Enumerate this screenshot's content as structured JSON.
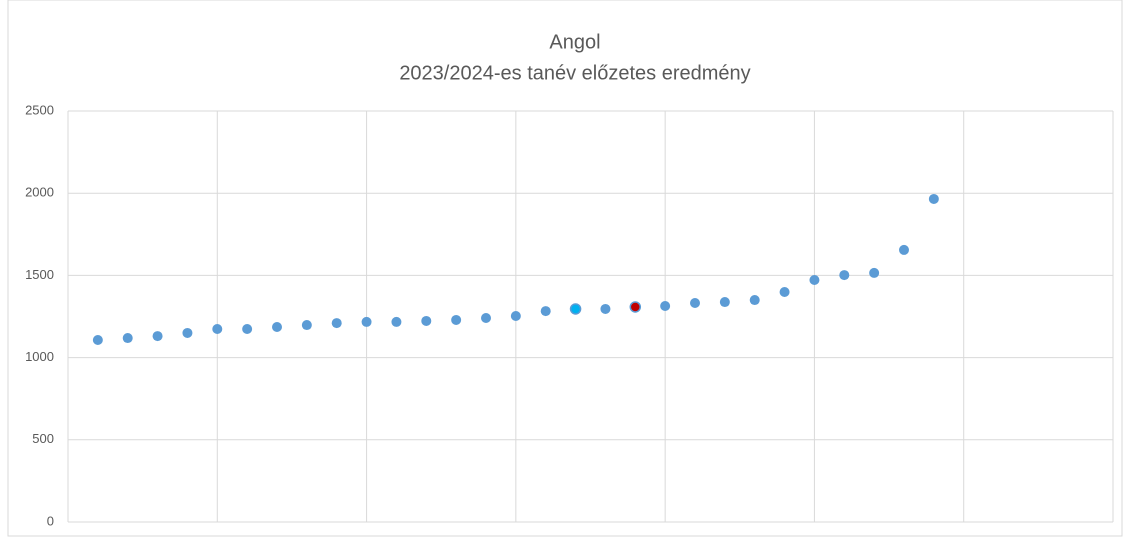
{
  "chart_data": {
    "type": "scatter",
    "title": "Angol",
    "subtitle": "2023/2024-es tanév előzetes eredmény",
    "series": [
      {
        "color": "#5b9bd5",
        "colors": [
          "#5b9bd5",
          "#5b9bd5",
          "#5b9bd5",
          "#5b9bd5",
          "#5b9bd5",
          "#5b9bd5",
          "#5b9bd5",
          "#5b9bd5",
          "#5b9bd5",
          "#5b9bd5",
          "#5b9bd5",
          "#5b9bd5",
          "#5b9bd5",
          "#5b9bd5",
          "#5b9bd5",
          "#5b9bd5",
          "#00b0f0",
          "#5b9bd5",
          "#c00000",
          "#5b9bd5",
          "#5b9bd5",
          "#5b9bd5",
          "#5b9bd5",
          "#5b9bd5",
          "#5b9bd5",
          "#5b9bd5",
          "#5b9bd5",
          "#5b9bd5",
          "#5b9bd5"
        ],
        "x": [
          1,
          2,
          3,
          4,
          5,
          6,
          7,
          8,
          9,
          10,
          11,
          12,
          13,
          14,
          15,
          16,
          17,
          18,
          19,
          20,
          21,
          22,
          23,
          24,
          25,
          26,
          27,
          28,
          29
        ],
        "values": [
          1107,
          1119,
          1131,
          1150,
          1174,
          1174,
          1186,
          1198,
          1210,
          1217,
          1217,
          1223,
          1229,
          1241,
          1253,
          1283,
          1296,
          1296,
          1308,
          1314,
          1332,
          1338,
          1350,
          1399,
          1472,
          1502,
          1515,
          1655,
          1965
        ]
      }
    ],
    "xlim": [
      0,
      35
    ],
    "xticks": [
      0,
      5,
      10,
      15,
      20,
      25,
      30,
      35
    ],
    "ylim": [
      0,
      2500
    ],
    "yticks": [
      0,
      500,
      1000,
      1500,
      2000,
      2500
    ],
    "grid": true
  }
}
